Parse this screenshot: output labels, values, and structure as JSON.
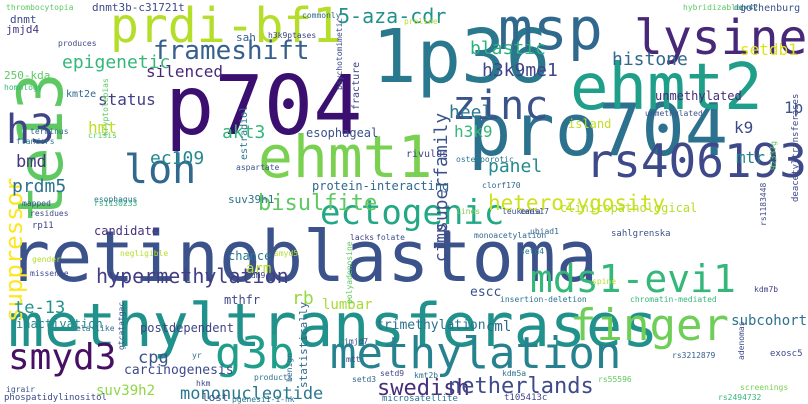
{
  "words": [
    {
      "text": "retinoblastoma",
      "color": "#3b528b"
    },
    {
      "text": "methyltransferases",
      "color": "#21918c"
    },
    {
      "text": "p704",
      "color": "#3b0f70"
    },
    {
      "text": "pro704",
      "color": "#2c728e"
    },
    {
      "text": "te13",
      "color": "#5ec962"
    },
    {
      "text": "ehmt2",
      "color": "#1f9e89"
    },
    {
      "text": "1p36",
      "color": "#2a788e"
    },
    {
      "text": "msp",
      "color": "#31688e"
    },
    {
      "text": "ehmt1",
      "color": "#7ad151"
    },
    {
      "text": "prdi-bf1",
      "color": "#b5de2b"
    },
    {
      "text": "lysine",
      "color": "#482878"
    },
    {
      "text": "rs406193",
      "color": "#3e4989"
    },
    {
      "text": "methylation",
      "color": "#26828e"
    },
    {
      "text": "finger",
      "color": "#6ece58"
    },
    {
      "text": "mds1-evi1",
      "color": "#35b779"
    },
    {
      "text": "g3b",
      "color": "#1f9e89"
    },
    {
      "text": "smyd3",
      "color": "#471063"
    },
    {
      "text": "ectogenic",
      "color": "#22a884"
    },
    {
      "text": "zinc",
      "color": "#3b528b"
    },
    {
      "text": "loh",
      "color": "#31688e"
    },
    {
      "text": "h3",
      "color": "#414487"
    },
    {
      "text": "frameshift",
      "color": "#355f8d"
    },
    {
      "text": "suppressor",
      "color": "#fde725"
    },
    {
      "text": "hypermethylation",
      "color": "#433e85"
    },
    {
      "text": "mononucleotide",
      "color": "#2a788e"
    },
    {
      "text": "swedish",
      "color": "#472d7b"
    },
    {
      "text": "netherlands",
      "color": "#3e4a89"
    },
    {
      "text": "bisulfite",
      "color": "#5ec962"
    },
    {
      "text": "heterozygosity",
      "color": "#cde11d"
    },
    {
      "text": "5-aza-cdr",
      "color": "#21918c"
    },
    {
      "text": "blastic",
      "color": "#2ab07f"
    },
    {
      "text": "h3k9me1",
      "color": "#414487"
    },
    {
      "text": "epigenetic",
      "color": "#35b779"
    },
    {
      "text": "histone",
      "color": "#31688e"
    },
    {
      "text": "setdb1",
      "color": "#dde318"
    },
    {
      "text": "superfamily",
      "color": "#3b528b"
    },
    {
      "text": "panel",
      "color": "#238a8d"
    },
    {
      "text": "heel",
      "color": "#2a788e"
    },
    {
      "text": "cimp",
      "color": "#3e4989"
    },
    {
      "text": "status",
      "color": "#433e85"
    },
    {
      "text": "silenced",
      "color": "#482878"
    },
    {
      "text": "akt3",
      "color": "#35b779"
    },
    {
      "text": "ec109",
      "color": "#23898e"
    },
    {
      "text": "hmt",
      "color": "#bddf26"
    },
    {
      "text": "prdm5",
      "color": "#2c728e"
    },
    {
      "text": "bmd",
      "color": "#453781"
    },
    {
      "text": "te-13",
      "color": "#21918c"
    },
    {
      "text": "inactivation",
      "color": "#238a8d"
    },
    {
      "text": "cpg",
      "color": "#3b528b"
    },
    {
      "text": "carcinogenesis",
      "color": "#3e4989"
    },
    {
      "text": "suv39h2",
      "color": "#8fd744"
    },
    {
      "text": "postdependent",
      "color": "#414487"
    },
    {
      "text": "rb",
      "color": "#95d840"
    },
    {
      "text": "lumbar",
      "color": "#a8db34"
    },
    {
      "text": "subcohort",
      "color": "#2c728e"
    },
    {
      "text": "mtr",
      "color": "#26828e"
    },
    {
      "text": "k9",
      "color": "#3e4989"
    },
    {
      "text": "1p",
      "color": "#3b528b"
    },
    {
      "text": "h3k9",
      "color": "#35b779"
    },
    {
      "text": "unmethylated",
      "color": "#472d7b"
    },
    {
      "text": "esophageal",
      "color": "#3b528b"
    },
    {
      "text": "protein-interacting",
      "color": "#31688e"
    },
    {
      "text": "candidate",
      "color": "#46327e"
    },
    {
      "text": "chance",
      "color": "#2a788e"
    },
    {
      "text": "arm",
      "color": "#b5de2b"
    },
    {
      "text": "mthfr",
      "color": "#3e4989"
    },
    {
      "text": "trimethylation",
      "color": "#2c728e"
    },
    {
      "text": "escc",
      "color": "#3b528b"
    },
    {
      "text": "cml",
      "color": "#31688e"
    },
    {
      "text": "island",
      "color": "#c2df23"
    },
    {
      "text": "clinicopathological",
      "color": "#b5de2b"
    },
    {
      "text": "suv39h1",
      "color": "#2c728e"
    },
    {
      "text": "estradiol",
      "color": "#2a788e"
    },
    {
      "text": "dnmt3b-c31721t",
      "color": "#3e4989"
    },
    {
      "text": "jmjd4",
      "color": "#453781"
    },
    {
      "text": "dnmt",
      "color": "#3e4989"
    },
    {
      "text": "kmt2e",
      "color": "#31688e"
    },
    {
      "text": "250-kda",
      "color": "#5ec962"
    },
    {
      "text": "sah",
      "color": "#355f8d"
    },
    {
      "text": "h3k9ptases",
      "color": "#414487"
    },
    {
      "text": "gothenburg",
      "color": "#3b528b"
    },
    {
      "text": "deacetyltransferases",
      "color": "#3e4989"
    },
    {
      "text": "92337g",
      "color": "#5ec962"
    },
    {
      "text": "rs1183448",
      "color": "#3e4989"
    },
    {
      "text": "sahlgrenska",
      "color": "#3b528b"
    },
    {
      "text": "insertion-deletion",
      "color": "#2c728e"
    },
    {
      "text": "chromatin-mediated",
      "color": "#35b779"
    },
    {
      "text": "exosc5",
      "color": "#3e4989"
    },
    {
      "text": "rs3212879",
      "color": "#355f8d"
    },
    {
      "text": "rs2494732",
      "color": "#35b779"
    },
    {
      "text": "screenings",
      "color": "#7ad151"
    },
    {
      "text": "adenomas",
      "color": "#3e4989"
    },
    {
      "text": "statistically",
      "color": "#31688e"
    },
    {
      "text": "microsatellite",
      "color": "#2c728e"
    },
    {
      "text": "t105413c",
      "color": "#414487"
    },
    {
      "text": "pgenesi1-1-hk",
      "color": "#2a788e"
    },
    {
      "text": "phospatidylinositol",
      "color": "#3e4989"
    },
    {
      "text": "igrair",
      "color": "#3b528b"
    },
    {
      "text": "ela-like",
      "color": "#2c728e"
    },
    {
      "text": "missense",
      "color": "#3e4989"
    },
    {
      "text": "rp11",
      "color": "#414487"
    },
    {
      "text": "gender",
      "color": "#b5de2b"
    },
    {
      "text": "thrombocytopia",
      "color": "#5ec962"
    },
    {
      "text": "produces",
      "color": "#3e4989"
    },
    {
      "text": "homology",
      "color": "#35b779"
    },
    {
      "text": "flanders",
      "color": "#2a788e"
    },
    {
      "text": "mapped",
      "color": "#3b528b"
    },
    {
      "text": "residues",
      "color": "#3e4989"
    },
    {
      "text": "terminus",
      "color": "#31688e"
    },
    {
      "text": "kryptolebias",
      "color": "#5ec962"
    },
    {
      "text": "rs1130233",
      "color": "#35b779"
    },
    {
      "text": "negligible",
      "color": "#b5de2b"
    },
    {
      "text": "esophagus",
      "color": "#2a788e"
    },
    {
      "text": "fracture",
      "color": "#414487"
    },
    {
      "text": "psychotomimetic",
      "color": "#3e4989"
    },
    {
      "text": "hybridizable",
      "color": "#5ec962"
    },
    {
      "text": "commonly",
      "color": "#31688e"
    },
    {
      "text": "proline",
      "color": "#b5de2b"
    },
    {
      "text": "ddx42",
      "color": "#2c728e"
    },
    {
      "text": "lines",
      "color": "#7ad151"
    },
    {
      "text": "leukemia",
      "color": "#3b528b"
    },
    {
      "text": "osteoporotic",
      "color": "#2a788e"
    },
    {
      "text": "rivulus",
      "color": "#414487"
    },
    {
      "text": "caes17",
      "color": "#3e4989"
    },
    {
      "text": "clorf170",
      "color": "#31688e"
    },
    {
      "text": "folate",
      "color": "#3b528b"
    },
    {
      "text": "lacks",
      "color": "#414487"
    },
    {
      "text": "products",
      "color": "#2c728e"
    },
    {
      "text": "mtt",
      "color": "#3e4989"
    },
    {
      "text": "benign",
      "color": "#31688e"
    },
    {
      "text": "spine",
      "color": "#b5de2b"
    },
    {
      "text": "monoacetylation",
      "color": "#31688e"
    },
    {
      "text": "polyadenosine",
      "color": "#5ec962"
    },
    {
      "text": "aspartate",
      "color": "#3b528b"
    },
    {
      "text": "kdm9",
      "color": "#3e4989"
    },
    {
      "text": "kdm5a",
      "color": "#2c728e"
    },
    {
      "text": "kdm7b",
      "color": "#414487"
    },
    {
      "text": "jmjd7",
      "color": "#3e4989"
    },
    {
      "text": "gtcatatgac",
      "color": "#3b528b"
    },
    {
      "text": "setd4",
      "color": "#2a788e"
    },
    {
      "text": "setd3",
      "color": "#31688e"
    },
    {
      "text": "setd9",
      "color": "#3e4989"
    },
    {
      "text": "kmt2b",
      "color": "#2c728e"
    },
    {
      "text": "rs55596",
      "color": "#5ec962"
    },
    {
      "text": "smyd5",
      "color": "#b5de2b"
    },
    {
      "text": "ubiad1",
      "color": "#31688e"
    },
    {
      "text": "hkm",
      "color": "#3e4989"
    },
    {
      "text": "lost",
      "color": "#3b528b"
    },
    {
      "text": "yr",
      "color": "#31688e"
    },
    {
      "text": "crisis",
      "color": "#5ec962"
    },
    {
      "text": "unmethylated",
      "color": "#3b528b"
    }
  ]
}
